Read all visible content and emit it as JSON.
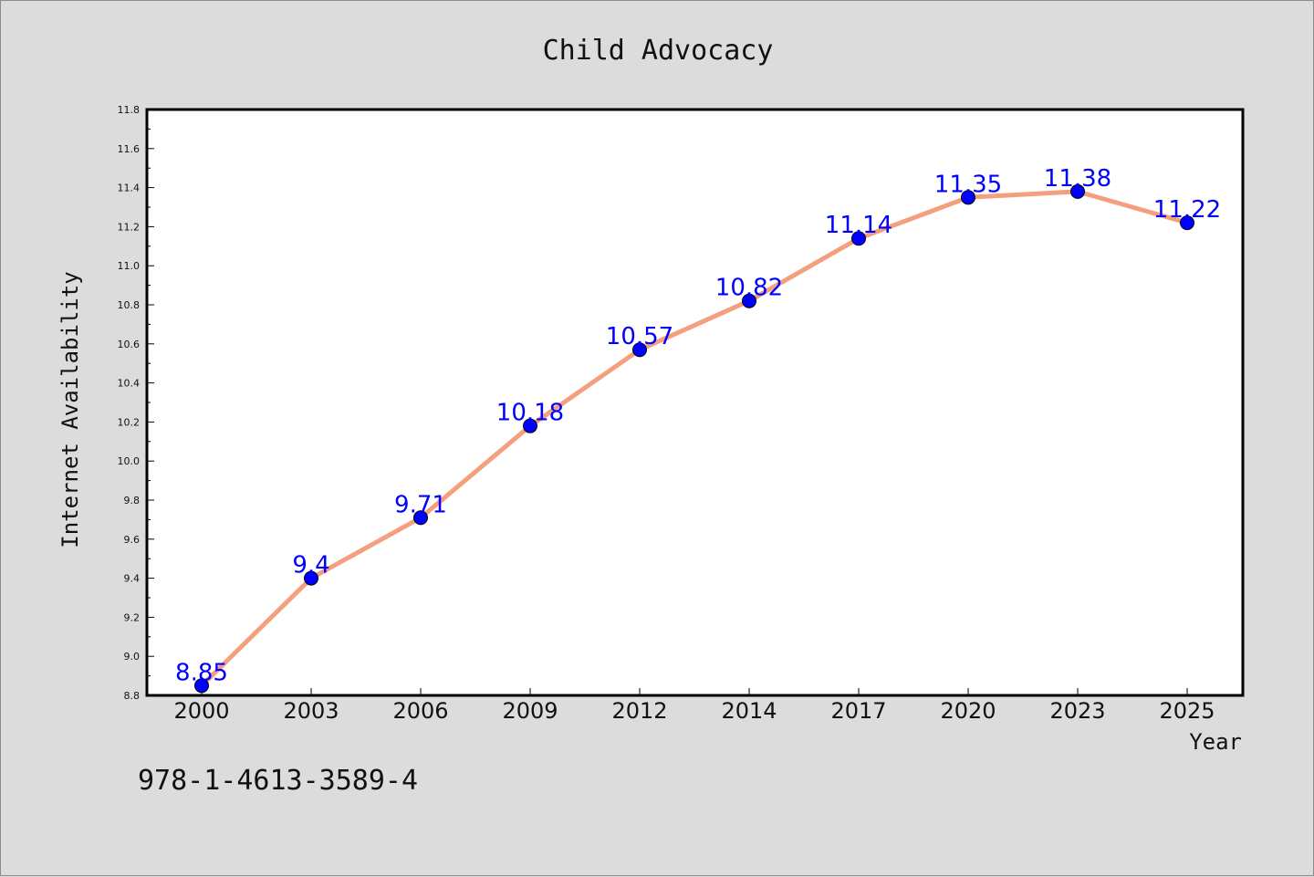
{
  "chart_data": {
    "type": "line",
    "title": "Child Advocacy",
    "xlabel": "Year",
    "ylabel": "Internet Availability",
    "categories": [
      "2000",
      "2003",
      "2006",
      "2009",
      "2012",
      "2014",
      "2017",
      "2020",
      "2023",
      "2025"
    ],
    "series": [
      {
        "values": [
          8.85,
          9.4,
          9.71,
          10.18,
          10.57,
          10.82,
          11.14,
          11.35,
          11.38,
          11.22
        ],
        "labels": [
          "8.85",
          "9.4",
          "9.71",
          "10.18",
          "10.57",
          "10.82",
          "11.14",
          "11.35",
          "11.38",
          "11.22"
        ],
        "line_color": "#f4a07e",
        "marker_color": "#0000ff",
        "label_color": "#0000ff"
      }
    ],
    "ylim": [
      8.8,
      11.8
    ],
    "yticks": [
      "8.8",
      "9.0",
      "9.2",
      "9.4",
      "9.6",
      "9.8",
      "10.0",
      "10.2",
      "10.4",
      "10.6",
      "10.8",
      "11.0",
      "11.2",
      "11.4",
      "11.6",
      "11.8"
    ],
    "grid": false,
    "background": "#dcdcdc",
    "plot_background": "#ffffff"
  },
  "footer": {
    "isbn": "978-1-4613-3589-4"
  }
}
